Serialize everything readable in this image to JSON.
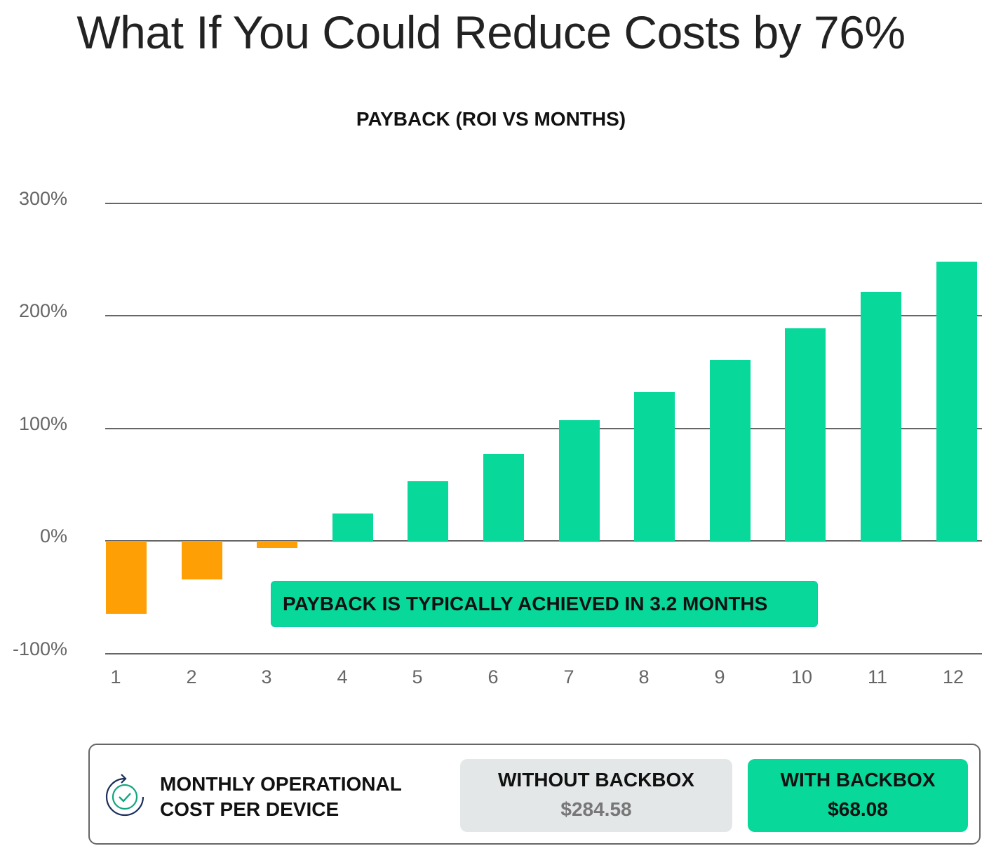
{
  "page": {
    "title": "What If You Could Reduce Costs by 76%"
  },
  "chart_data": {
    "type": "bar",
    "title": "PAYBACK (ROI VS MONTHS)",
    "xlabel": "",
    "ylabel": "",
    "categories": [
      "1",
      "2",
      "3",
      "4",
      "5",
      "6",
      "7",
      "8",
      "9",
      "10",
      "11",
      "12"
    ],
    "values": [
      -65,
      -34,
      -6,
      24,
      53,
      77,
      107,
      132,
      161,
      189,
      221,
      248
    ],
    "unit": "%",
    "ylim": [
      -100,
      300
    ],
    "yticks": [
      "300%",
      "200%",
      "100%",
      "0%",
      "-100%"
    ],
    "grid": true,
    "colors": {
      "negative": "#ff9f06",
      "positive": "#08d89a"
    },
    "annotation": "PAYBACK IS TYPICALLY ACHIEVED IN 3.2 MONTHS"
  },
  "cost_panel": {
    "label_line1": "MONTHLY OPERATIONAL",
    "label_line2": "COST PER DEVICE",
    "icon": "refresh-check-icon",
    "without": {
      "label": "WITHOUT BACKBOX",
      "value": "$284.58"
    },
    "with": {
      "label": "WITH BACKBOX",
      "value": "$68.08"
    }
  }
}
